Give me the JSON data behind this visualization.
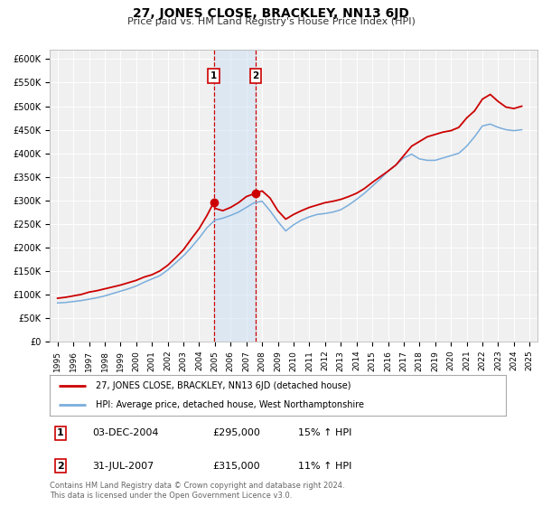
{
  "title": "27, JONES CLOSE, BRACKLEY, NN13 6JD",
  "subtitle": "Price paid vs. HM Land Registry's House Price Index (HPI)",
  "background_color": "#ffffff",
  "plot_bg_color": "#f0f0f0",
  "grid_color": "#ffffff",
  "red_line_color": "#cc0000",
  "blue_line_color": "#7aaddc",
  "shade_color": "#cce0f5",
  "sale1_x": 2004.92,
  "sale1_y": 295000,
  "sale1_label": "1",
  "sale1_date": "03-DEC-2004",
  "sale1_price": "£295,000",
  "sale1_hpi": "15% ↑ HPI",
  "sale2_x": 2007.58,
  "sale2_y": 315000,
  "sale2_label": "2",
  "sale2_date": "31-JUL-2007",
  "sale2_price": "£315,000",
  "sale2_hpi": "11% ↑ HPI",
  "ylim": [
    0,
    620000
  ],
  "yticks": [
    0,
    50000,
    100000,
    150000,
    200000,
    250000,
    300000,
    350000,
    400000,
    450000,
    500000,
    550000,
    600000
  ],
  "ytick_labels": [
    "£0",
    "£50K",
    "£100K",
    "£150K",
    "£200K",
    "£250K",
    "£300K",
    "£350K",
    "£400K",
    "£450K",
    "£500K",
    "£550K",
    "£600K"
  ],
  "xlim_start": 1994.5,
  "xlim_end": 2025.5,
  "legend_line1": "27, JONES CLOSE, BRACKLEY, NN13 6JD (detached house)",
  "legend_line2": "HPI: Average price, detached house, West Northamptonshire",
  "footer": "Contains HM Land Registry data © Crown copyright and database right 2024.\nThis data is licensed under the Open Government Licence v3.0.",
  "red_x": [
    1995.0,
    1995.5,
    1996.0,
    1996.5,
    1997.0,
    1997.5,
    1998.0,
    1998.5,
    1999.0,
    1999.5,
    2000.0,
    2000.5,
    2001.0,
    2001.5,
    2002.0,
    2002.5,
    2003.0,
    2003.5,
    2004.0,
    2004.5,
    2004.92,
    2005.0,
    2005.5,
    2006.0,
    2006.5,
    2007.0,
    2007.58,
    2008.0,
    2008.5,
    2009.0,
    2009.5,
    2010.0,
    2010.5,
    2011.0,
    2011.5,
    2012.0,
    2012.5,
    2013.0,
    2013.5,
    2014.0,
    2014.5,
    2015.0,
    2015.5,
    2016.0,
    2016.5,
    2017.0,
    2017.5,
    2018.0,
    2018.5,
    2019.0,
    2019.5,
    2020.0,
    2020.5,
    2021.0,
    2021.5,
    2022.0,
    2022.5,
    2023.0,
    2023.5,
    2024.0,
    2024.5
  ],
  "red_y": [
    92000,
    94000,
    97000,
    100000,
    105000,
    108000,
    112000,
    116000,
    120000,
    125000,
    130000,
    137000,
    142000,
    150000,
    162000,
    178000,
    195000,
    218000,
    240000,
    268000,
    295000,
    283000,
    278000,
    285000,
    295000,
    308000,
    315000,
    320000,
    305000,
    278000,
    260000,
    270000,
    278000,
    285000,
    290000,
    295000,
    298000,
    302000,
    308000,
    315000,
    325000,
    338000,
    350000,
    362000,
    375000,
    395000,
    415000,
    425000,
    435000,
    440000,
    445000,
    448000,
    455000,
    475000,
    490000,
    515000,
    525000,
    510000,
    498000,
    495000,
    500000
  ],
  "blue_x": [
    1995.0,
    1995.5,
    1996.0,
    1996.5,
    1997.0,
    1997.5,
    1998.0,
    1998.5,
    1999.0,
    1999.5,
    2000.0,
    2000.5,
    2001.0,
    2001.5,
    2002.0,
    2002.5,
    2003.0,
    2003.5,
    2004.0,
    2004.5,
    2005.0,
    2005.5,
    2006.0,
    2006.5,
    2007.0,
    2007.5,
    2008.0,
    2008.5,
    2009.0,
    2009.5,
    2010.0,
    2010.5,
    2011.0,
    2011.5,
    2012.0,
    2012.5,
    2013.0,
    2013.5,
    2014.0,
    2014.5,
    2015.0,
    2015.5,
    2016.0,
    2016.5,
    2017.0,
    2017.5,
    2018.0,
    2018.5,
    2019.0,
    2019.5,
    2020.0,
    2020.5,
    2021.0,
    2021.5,
    2022.0,
    2022.5,
    2023.0,
    2023.5,
    2024.0,
    2024.5
  ],
  "blue_y": [
    82000,
    83000,
    85000,
    87000,
    90000,
    93000,
    97000,
    102000,
    107000,
    112000,
    118000,
    126000,
    133000,
    140000,
    152000,
    167000,
    182000,
    200000,
    220000,
    242000,
    258000,
    262000,
    268000,
    275000,
    285000,
    295000,
    298000,
    278000,
    255000,
    235000,
    248000,
    258000,
    265000,
    270000,
    272000,
    275000,
    280000,
    290000,
    302000,
    315000,
    330000,
    345000,
    362000,
    375000,
    390000,
    398000,
    388000,
    385000,
    385000,
    390000,
    395000,
    400000,
    415000,
    435000,
    458000,
    462000,
    455000,
    450000,
    448000,
    450000
  ]
}
